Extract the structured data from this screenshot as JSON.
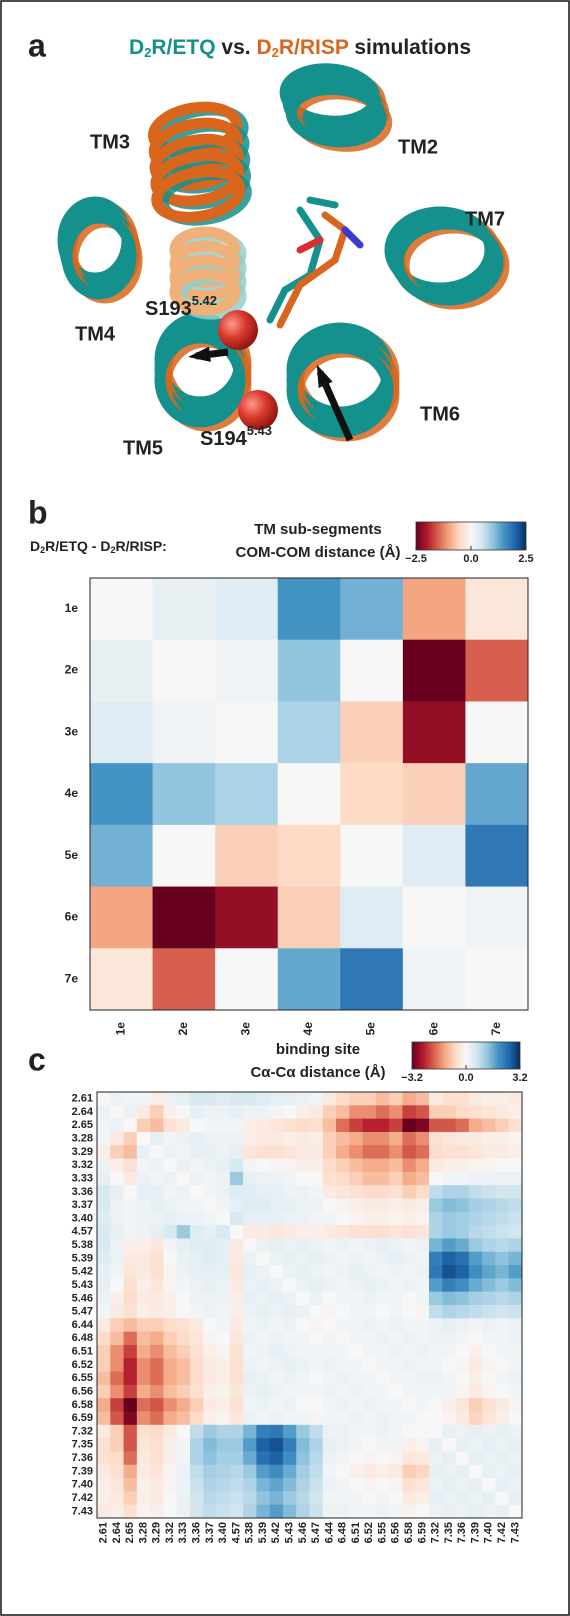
{
  "panel_a": {
    "letter": "a",
    "title": [
      "D",
      "2",
      "R/ETQ",
      " vs. ",
      "D",
      "2",
      "R/RISP",
      " simulations"
    ],
    "colors": [
      "#15918d",
      "#d9661c"
    ],
    "labels": {
      "tm3": "TM3",
      "tm2": "TM2",
      "tm7": "TM7",
      "tm4": "TM4",
      "tm6": "TM6",
      "tm5": "TM5",
      "s193": [
        "S193",
        "5.42"
      ],
      "s194": [
        "S194",
        "5.43"
      ]
    }
  },
  "chart_data": [
    {
      "type": "heatmap",
      "letter": "b",
      "header": [
        "D",
        "2",
        "R/ETQ - D",
        "2",
        "R/RISP:"
      ],
      "title": "TM sub-segments",
      "subtitle": "COM-COM distance (Å)",
      "categories": [
        "1e",
        "2e",
        "3e",
        "4e",
        "5e",
        "6e",
        "7e"
      ],
      "values": [
        [
          0,
          0.2,
          0.3,
          1.5,
          1.2,
          -1,
          -0.3
        ],
        [
          0.2,
          0,
          0.1,
          1.0,
          0,
          -2.5,
          -1.5
        ],
        [
          0.3,
          0.1,
          0,
          0.8,
          -0.6,
          -2.2,
          0
        ],
        [
          1.5,
          1.0,
          0.8,
          0,
          -0.5,
          -0.6,
          1.3
        ],
        [
          1.2,
          0,
          -0.6,
          -0.5,
          0,
          0.3,
          1.8
        ],
        [
          -1,
          -2.5,
          -2.2,
          -0.6,
          0.3,
          0,
          0.1
        ],
        [
          -0.3,
          -1.5,
          0,
          1.3,
          1.8,
          0.1,
          0
        ]
      ],
      "clim": [
        -2.5,
        2.5
      ],
      "cticks": [
        {
          "value": -2.5,
          "label": "−2.5"
        },
        {
          "value": 0,
          "label": "0.0"
        },
        {
          "value": 2.5,
          "label": "2.5"
        }
      ],
      "colors": [
        "#67001f",
        "#b2182b",
        "#d6604d",
        "#f4a582",
        "#fddbc7",
        "#f7f7f7",
        "#d1e5f0",
        "#92c5de",
        "#4393c3",
        "#2166ac",
        "#053061"
      ]
    },
    {
      "type": "heatmap",
      "letter": "c",
      "title": "binding site",
      "subtitle": "Cα-Cα distance (Å)",
      "categories": [
        "2.61",
        "2.64",
        "2.65",
        "3.28",
        "3.29",
        "3.32",
        "3.33",
        "3.36",
        "3.37",
        "3.40",
        "4.57",
        "5.38",
        "5.39",
        "5.42",
        "5.43",
        "5.46",
        "5.47",
        "6.44",
        "6.48",
        "6.51",
        "6.52",
        "6.55",
        "6.56",
        "6.58",
        "6.59",
        "7.32",
        "7.35",
        "7.36",
        "7.39",
        "7.40",
        "7.42",
        "7.43"
      ],
      "values": [
        [
          0,
          0.2,
          0.1,
          0.1,
          -0.2,
          0.2,
          0.3,
          0.5,
          0.5,
          0.4,
          0.5,
          0.5,
          0.4,
          0.3,
          0.3,
          0.2,
          0.1,
          -0.3,
          -0.6,
          -0.8,
          -0.8,
          -1,
          -0.8,
          -1.2,
          -1,
          -0.3,
          -0.5,
          -0.5,
          -0.3,
          -0.2,
          -0.2,
          -0.3
        ],
        [
          0.2,
          0,
          0.2,
          -0.3,
          -0.8,
          -0.2,
          0,
          0.3,
          0.2,
          0.2,
          0.3,
          0.2,
          0.2,
          0.1,
          0,
          -0.2,
          -0.3,
          -0.8,
          -1,
          -1.5,
          -1.5,
          -1.8,
          -1.5,
          -2.2,
          -2,
          -0.8,
          -0.8,
          -0.6,
          -0.5,
          -0.4,
          -0.3,
          -0.2
        ],
        [
          0.1,
          0.2,
          0,
          -0.8,
          -1,
          -0.5,
          -0.3,
          0,
          0.1,
          0.1,
          0.1,
          -0.2,
          -0.3,
          -0.4,
          -0.5,
          -0.6,
          -0.5,
          -1,
          -1.8,
          -2.2,
          -2.5,
          -2.5,
          -2.2,
          -3.2,
          -3,
          -2,
          -2,
          -1.8,
          -1.2,
          -1,
          -0.8,
          -0.5
        ],
        [
          0.1,
          -0.3,
          -0.8,
          0,
          0.3,
          0.1,
          0.2,
          0.3,
          0.2,
          0.2,
          0.2,
          -0.2,
          -0.3,
          -0.3,
          -0.2,
          -0.3,
          -0.2,
          -0.8,
          -1,
          -1.2,
          -1.5,
          -1.5,
          -1.2,
          -1.8,
          -1.5,
          -0.5,
          -0.4,
          -0.3,
          -0.3,
          -0.2,
          -0.2,
          -0.1
        ],
        [
          -0.2,
          -0.8,
          -1,
          0.3,
          0,
          0.2,
          0.1,
          0.3,
          0.3,
          0.2,
          0.3,
          -0.4,
          -0.5,
          -0.5,
          -0.4,
          -0.3,
          -0.3,
          -0.8,
          -1.2,
          -1.5,
          -1.8,
          -1.8,
          -1.5,
          -2,
          -1.8,
          -0.6,
          -0.5,
          -0.5,
          -0.4,
          -0.3,
          -0.3,
          -0.2
        ],
        [
          0.2,
          -0.2,
          -0.5,
          0.1,
          0.2,
          0,
          0.2,
          0.1,
          0.2,
          0.3,
          0.5,
          0.1,
          0,
          -0.1,
          -0.1,
          -0.2,
          -0.2,
          -0.6,
          -0.8,
          -1,
          -1.2,
          -1.2,
          -1,
          -1.5,
          -1.2,
          -0.3,
          -0.2,
          -0.2,
          -0.1,
          -0.1,
          0,
          0
        ],
        [
          0.3,
          0,
          -0.3,
          0.2,
          0.1,
          0.2,
          0,
          0.2,
          0.1,
          0.2,
          1.2,
          0.3,
          0.2,
          0.2,
          0.1,
          0,
          0,
          -0.5,
          -0.6,
          -0.8,
          -1,
          -1,
          -0.8,
          -1.2,
          -1,
          0,
          0.1,
          0.1,
          0.2,
          0.2,
          0.2,
          0.2
        ],
        [
          0.5,
          0.3,
          0,
          0.3,
          0.3,
          0.1,
          0.2,
          0,
          0.1,
          0.2,
          0.4,
          0.4,
          0.3,
          0.3,
          0.2,
          0.2,
          0.1,
          -0.3,
          -0.4,
          -0.5,
          -0.6,
          -0.6,
          -0.5,
          -0.8,
          -0.6,
          0.8,
          1,
          1,
          0.8,
          0.7,
          0.6,
          0.6
        ],
        [
          0.5,
          0.2,
          0.1,
          0.2,
          0.3,
          0.2,
          0.1,
          0.1,
          0,
          0.1,
          0.3,
          0.4,
          0.4,
          0.3,
          0.3,
          0.2,
          0.2,
          0,
          -0.1,
          -0.2,
          -0.3,
          -0.3,
          -0.2,
          -0.3,
          -0.2,
          1.2,
          1.4,
          1.3,
          1.1,
          1,
          0.9,
          0.8
        ],
        [
          0.4,
          0.2,
          0.1,
          0.2,
          0.2,
          0.3,
          0.2,
          0.2,
          0.1,
          0,
          0.5,
          0.3,
          0.3,
          0.3,
          0.2,
          0.2,
          0.1,
          0.1,
          0,
          -0.1,
          -0.2,
          -0.2,
          -0.1,
          -0.2,
          -0.1,
          1,
          1.2,
          1.1,
          1,
          0.9,
          0.8,
          0.7
        ],
        [
          0.5,
          0.3,
          0.1,
          0.2,
          0.3,
          0.5,
          1.2,
          0.4,
          0.3,
          0.5,
          0,
          -0.3,
          -0.3,
          -0.4,
          -0.3,
          -0.2,
          -0.2,
          -0.3,
          -0.4,
          -0.5,
          -0.5,
          -0.5,
          -0.4,
          -0.5,
          -0.4,
          1,
          1.2,
          1.1,
          0.9,
          0.8,
          0.7,
          0.6
        ],
        [
          0.5,
          0.2,
          -0.2,
          -0.2,
          -0.4,
          0.1,
          0.3,
          0.4,
          0.4,
          0.3,
          -0.3,
          0,
          0.2,
          0.3,
          0.2,
          0.3,
          0.2,
          0.1,
          0.2,
          0.1,
          0.2,
          0.3,
          0.2,
          0.1,
          0.2,
          1.5,
          1.8,
          1.6,
          1.2,
          1,
          0.9,
          1
        ],
        [
          0.4,
          0.2,
          -0.3,
          -0.3,
          -0.5,
          0,
          0.2,
          0.3,
          0.4,
          0.3,
          -0.3,
          0.2,
          0,
          0.2,
          0.3,
          0.2,
          0.3,
          0.2,
          0.1,
          0.2,
          0.1,
          0.2,
          0.3,
          0.2,
          0.1,
          2.2,
          2.6,
          2.4,
          1.8,
          1.5,
          1.3,
          1.5
        ],
        [
          0.3,
          0.1,
          -0.4,
          -0.3,
          -0.5,
          -0.1,
          0.2,
          0.3,
          0.3,
          0.3,
          -0.4,
          0.3,
          0.2,
          0,
          0.2,
          0.3,
          0.2,
          0.1,
          0.2,
          0.3,
          0.2,
          0.1,
          0.2,
          0.1,
          0.2,
          2.3,
          2.8,
          2.6,
          2,
          1.7,
          1.5,
          1.8
        ],
        [
          0.3,
          0,
          -0.5,
          -0.2,
          -0.4,
          -0.1,
          0.1,
          0.2,
          0.3,
          0.2,
          -0.3,
          0.2,
          0.3,
          0.2,
          0,
          0.2,
          0.3,
          0.2,
          0.1,
          0.2,
          0.3,
          0.2,
          0.1,
          0.2,
          0.1,
          1.8,
          2.2,
          2,
          1.6,
          1.4,
          1.2,
          1.4
        ],
        [
          0.2,
          -0.2,
          -0.6,
          -0.3,
          -0.3,
          -0.2,
          0,
          0.2,
          0.2,
          0.2,
          -0.2,
          0.3,
          0.2,
          0.3,
          0.2,
          0,
          0.2,
          0,
          0.1,
          0.1,
          0.2,
          0.1,
          0.1,
          0,
          0.1,
          1.2,
          1.4,
          1.3,
          1.1,
          1,
          0.9,
          1
        ],
        [
          0.1,
          -0.3,
          -0.5,
          -0.2,
          -0.3,
          -0.2,
          0,
          0.1,
          0.2,
          0.1,
          -0.2,
          0.2,
          0.3,
          0.2,
          0.3,
          0.2,
          0,
          -0.1,
          0,
          0.1,
          0.1,
          0,
          0.1,
          0,
          -0.1,
          0.8,
          1,
          0.9,
          0.8,
          0.7,
          0.6,
          0.7
        ],
        [
          -0.3,
          -0.8,
          -1,
          -0.8,
          -0.8,
          -0.6,
          -0.5,
          -0.3,
          0,
          0.1,
          -0.3,
          0.1,
          0.2,
          0.1,
          0.2,
          0,
          -0.1,
          0,
          0.1,
          0.1,
          0.2,
          0.1,
          0.2,
          0.1,
          0.1,
          0.2,
          0.3,
          0.2,
          0.1,
          0.2,
          0.1,
          0.2
        ],
        [
          -0.6,
          -1,
          -1.8,
          -1,
          -1.2,
          -0.8,
          -0.6,
          -0.4,
          -0.1,
          0,
          -0.4,
          0.2,
          0.1,
          0.2,
          0.1,
          0.1,
          0,
          0.1,
          0,
          0.1,
          0.1,
          0.2,
          0.1,
          0.2,
          0.1,
          0.2,
          0.2,
          0.1,
          0,
          0.1,
          0.1,
          0.2
        ],
        [
          -0.8,
          -1.5,
          -2.2,
          -1.2,
          -1.5,
          -1,
          -0.8,
          -0.5,
          -0.2,
          -0.1,
          -0.5,
          0.1,
          0.2,
          0.3,
          0.2,
          0.1,
          0.1,
          0.1,
          0.1,
          0,
          0.1,
          0.1,
          0.2,
          0.1,
          0.2,
          0.1,
          0.1,
          0,
          -0.2,
          0,
          0.1,
          0.1
        ],
        [
          -0.8,
          -1.5,
          -2.5,
          -1.5,
          -1.8,
          -1.2,
          -1,
          -0.6,
          -0.3,
          -0.2,
          -0.5,
          0.2,
          0.1,
          0.2,
          0.3,
          0.2,
          0.1,
          0.2,
          0.1,
          0.1,
          0,
          0.1,
          0.1,
          0.2,
          0.1,
          0.1,
          0,
          -0.1,
          -0.3,
          -0.1,
          0,
          0.1
        ],
        [
          -1,
          -1.8,
          -2.5,
          -1.5,
          -1.8,
          -1.2,
          -1,
          -0.6,
          -0.3,
          -0.2,
          -0.5,
          0.3,
          0.2,
          0.1,
          0.2,
          0.1,
          0,
          0.1,
          0.2,
          0.1,
          0.1,
          0,
          0.1,
          0.1,
          0.2,
          0.2,
          0.1,
          0,
          -0.2,
          0,
          0.1,
          0.2
        ],
        [
          -0.8,
          -1.5,
          -2.2,
          -1.2,
          -1.5,
          -1,
          -0.8,
          -0.5,
          -0.2,
          -0.1,
          -0.4,
          0.2,
          0.3,
          0.2,
          0.1,
          0.1,
          0.1,
          0.2,
          0.1,
          0.2,
          0.1,
          0.1,
          0,
          0.1,
          0.1,
          0.1,
          0.1,
          -0.1,
          -0.3,
          -0.1,
          0,
          0.1
        ],
        [
          -1.2,
          -2.2,
          -3.2,
          -1.8,
          -2,
          -1.5,
          -1.2,
          -0.8,
          -0.3,
          -0.2,
          -0.5,
          0.1,
          0.2,
          0.1,
          0.2,
          0,
          0,
          0.1,
          0.2,
          0.1,
          0.2,
          0.1,
          0.1,
          0,
          0.1,
          0,
          -0.2,
          -0.4,
          -0.8,
          -0.5,
          -0.3,
          -0.1
        ],
        [
          -1,
          -2,
          -3,
          -1.5,
          -1.8,
          -1.2,
          -1,
          -0.6,
          -0.2,
          -0.1,
          -0.4,
          0.2,
          0.1,
          0.2,
          0.1,
          0.1,
          -0.1,
          0.1,
          0.1,
          0.2,
          0.1,
          0.2,
          0.1,
          0.1,
          0,
          0,
          -0.1,
          -0.3,
          -0.7,
          -0.4,
          -0.2,
          0
        ],
        [
          -0.3,
          -0.8,
          -2,
          -0.5,
          -0.6,
          -0.3,
          0,
          0.8,
          1.2,
          1,
          1,
          1.5,
          2.2,
          2.3,
          1.8,
          1.2,
          0.8,
          0.2,
          0.2,
          0.1,
          0.1,
          0.2,
          0.1,
          0,
          0,
          0,
          0.3,
          0.2,
          0.3,
          0.2,
          0.3,
          0.2
        ],
        [
          -0.5,
          -0.8,
          -2,
          -0.4,
          -0.5,
          -0.2,
          0.1,
          1,
          1.4,
          1.2,
          1.2,
          1.8,
          2.6,
          2.8,
          2.2,
          1.4,
          1,
          0.3,
          0.2,
          0.1,
          0,
          0.1,
          0.1,
          -0.2,
          -0.1,
          0.3,
          0,
          0.3,
          0.2,
          0.3,
          0.2,
          0.3
        ],
        [
          -0.5,
          -0.6,
          -1.8,
          -0.3,
          -0.5,
          -0.2,
          0.1,
          1,
          1.3,
          1.1,
          1.1,
          1.6,
          2.4,
          2.6,
          2,
          1.3,
          0.9,
          0.2,
          0.1,
          0,
          -0.1,
          0,
          -0.1,
          -0.4,
          -0.3,
          0.2,
          0.3,
          0,
          0.3,
          0.2,
          0.3,
          0.2
        ],
        [
          -0.3,
          -0.5,
          -1.2,
          -0.3,
          -0.4,
          -0.1,
          0.2,
          0.8,
          1.1,
          1,
          0.9,
          1.2,
          1.8,
          2,
          1.6,
          1.1,
          0.8,
          0.1,
          0,
          -0.2,
          -0.3,
          -0.2,
          -0.3,
          -0.8,
          -0.7,
          0.3,
          0.2,
          0.3,
          0,
          0.3,
          0.2,
          0.3
        ],
        [
          -0.2,
          -0.4,
          -1,
          -0.2,
          -0.3,
          -0.1,
          0.2,
          0.7,
          1,
          0.9,
          0.8,
          1,
          1.5,
          1.7,
          1.4,
          1,
          0.7,
          0.2,
          0.1,
          0,
          -0.1,
          0,
          -0.1,
          -0.5,
          -0.4,
          0.2,
          0.3,
          0.2,
          0.3,
          0,
          0.3,
          0.2
        ],
        [
          -0.2,
          -0.3,
          -0.8,
          -0.2,
          -0.3,
          0,
          0.2,
          0.6,
          0.9,
          0.8,
          0.7,
          0.9,
          1.3,
          1.5,
          1.2,
          0.9,
          0.6,
          0.1,
          0.1,
          0.1,
          0,
          0.1,
          0,
          -0.3,
          -0.2,
          0.3,
          0.2,
          0.3,
          0.2,
          0.3,
          0,
          0.3
        ],
        [
          -0.3,
          -0.2,
          -0.5,
          -0.1,
          -0.2,
          0,
          0.2,
          0.6,
          0.8,
          0.7,
          0.6,
          1,
          1.5,
          1.8,
          1.4,
          1,
          0.7,
          0.2,
          0.2,
          0.1,
          0.1,
          0.2,
          0.1,
          -0.1,
          0,
          0.2,
          0.3,
          0.2,
          0.3,
          0.2,
          0.3,
          0
        ]
      ],
      "clim": [
        -3.2,
        3.2
      ],
      "cticks": [
        {
          "value": -3.2,
          "label": "−3.2"
        },
        {
          "value": 0,
          "label": "0.0"
        },
        {
          "value": 3.2,
          "label": "3.2"
        }
      ],
      "colors": [
        "#67001f",
        "#b2182b",
        "#d6604d",
        "#f4a582",
        "#fddbc7",
        "#f7f7f7",
        "#d1e5f0",
        "#92c5de",
        "#4393c3",
        "#2166ac",
        "#053061"
      ]
    }
  ]
}
